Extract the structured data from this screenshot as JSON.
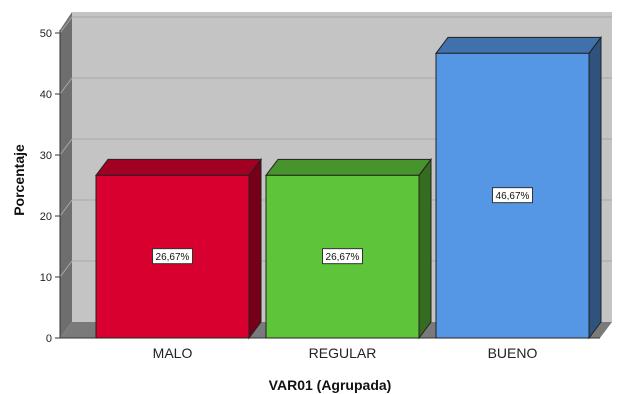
{
  "chart_data": {
    "type": "bar",
    "categories": [
      "MALO",
      "REGULAR",
      "BUENO"
    ],
    "values": [
      26.67,
      26.67,
      46.67
    ],
    "data_labels": [
      "26,67%",
      "26,67%",
      "46,67%"
    ],
    "colors": [
      "#d7002e",
      "#5ec43a",
      "#5597e5"
    ],
    "xlabel": "VAR01 (Agrupada)",
    "ylabel": "Porcentaje",
    "ylim": [
      0,
      50
    ],
    "yticks": [
      "0",
      "10",
      "20",
      "30",
      "40",
      "50"
    ],
    "grid": true,
    "style": "3d"
  }
}
